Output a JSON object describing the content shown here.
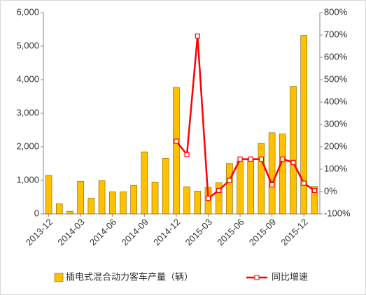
{
  "chart_data": {
    "type": "bar_line",
    "categories": [
      "2013-12",
      null,
      null,
      "2014-03",
      null,
      null,
      "2014-06",
      null,
      null,
      "2014-09",
      null,
      null,
      "2014-12",
      null,
      null,
      "2015-03",
      null,
      null,
      "2015-06",
      null,
      null,
      "2015-09",
      null,
      null,
      "2015-12",
      null
    ],
    "series": [
      {
        "name": "插电式混合动力客车产量（辆）",
        "color": "#FFC000",
        "type": "bar",
        "values": [
          1150,
          300,
          80,
          970,
          470,
          990,
          660,
          660,
          850,
          1850,
          950,
          1660,
          3770,
          810,
          680,
          790,
          930,
          1510,
          1580,
          1650,
          2100,
          2420,
          2380,
          3800,
          5320,
          820
        ]
      },
      {
        "name": "同比增速",
        "color": "#FF0000",
        "type": "line",
        "axis": "y2",
        "values": [
          null,
          null,
          null,
          null,
          null,
          null,
          null,
          null,
          null,
          null,
          null,
          null,
          225,
          165,
          695,
          -30,
          5,
          50,
          145,
          145,
          145,
          30,
          145,
          130,
          37,
          5
        ]
      }
    ],
    "ylim": [
      0,
      6000
    ],
    "yticks": [
      0,
      {
        "value": 1000,
        "label": "1,000"
      },
      {
        "value": 2000,
        "label": "2,000"
      },
      {
        "value": 3000,
        "label": "3,000"
      },
      {
        "value": 4000,
        "label": "4,000"
      },
      {
        "value": 5000,
        "label": "5,000"
      },
      {
        "value": 6000,
        "label": "6,000"
      }
    ],
    "y2lim": [
      -100,
      800
    ],
    "y2ticks": [
      {
        "value": -100,
        "label": "-100%"
      },
      {
        "value": 0,
        "label": "0%"
      },
      {
        "value": 100,
        "label": "100%"
      },
      {
        "value": 200,
        "label": "200%"
      },
      {
        "value": 300,
        "label": "300%"
      },
      {
        "value": 400,
        "label": "400%"
      },
      {
        "value": 500,
        "label": "500%"
      },
      {
        "value": 600,
        "label": "600%"
      },
      {
        "value": 700,
        "label": "700%"
      },
      {
        "value": 800,
        "label": "800%"
      }
    ],
    "legend": "bottom"
  }
}
